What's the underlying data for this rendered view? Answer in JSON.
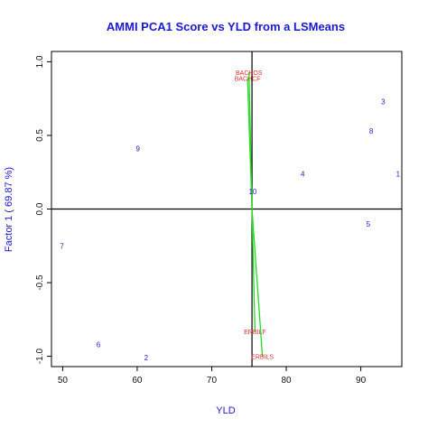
{
  "chart_data": {
    "type": "scatter",
    "title": "AMMI PCA1 Score vs YLD from a LSMeans",
    "xlabel": "YLD",
    "ylabel": "Factor 1 ( 69.87 %)",
    "xlim": [
      48.5,
      95.5
    ],
    "ylim": [
      -1.07,
      1.07
    ],
    "x_ticks": [
      "50",
      "60",
      "70",
      "80",
      "90"
    ],
    "y_ticks": [
      "-1.0",
      "-0.5",
      "0.0",
      "0.5",
      "1.0"
    ],
    "grand_mean_x": 75.4,
    "grand_mean_x_label": "",
    "grand_mean_y": 0.0,
    "genotypes": [
      {
        "label": "1",
        "x": 95.0,
        "y": 0.24
      },
      {
        "label": "2",
        "x": 61.2,
        "y": -1.01
      },
      {
        "label": "3",
        "x": 93.0,
        "y": 0.73
      },
      {
        "label": "4",
        "x": 82.2,
        "y": 0.24
      },
      {
        "label": "5",
        "x": 91.0,
        "y": -0.1
      },
      {
        "label": "6",
        "x": 54.8,
        "y": -0.92
      },
      {
        "label": "7",
        "x": 49.9,
        "y": -0.25
      },
      {
        "label": "8",
        "x": 91.4,
        "y": 0.53
      },
      {
        "label": "9",
        "x": 60.1,
        "y": 0.41
      },
      {
        "label": "10",
        "x": 75.5,
        "y": 0.12
      }
    ],
    "environments": [
      {
        "label": "BACHOS",
        "x": 75.0,
        "y": 0.93
      },
      {
        "label": "BACHCF",
        "x": 74.8,
        "y": 0.89
      },
      {
        "label": "ERBILF",
        "x": 75.8,
        "y": -0.83
      },
      {
        "label": "ERBILS",
        "x": 76.8,
        "y": -1.0
      }
    ],
    "colors": {
      "title": "#1a1ad0",
      "genotype": "#1a1ad0",
      "environment": "#e03030",
      "vectors": "#22dd22",
      "axes": "#000000"
    },
    "grid": false
  }
}
